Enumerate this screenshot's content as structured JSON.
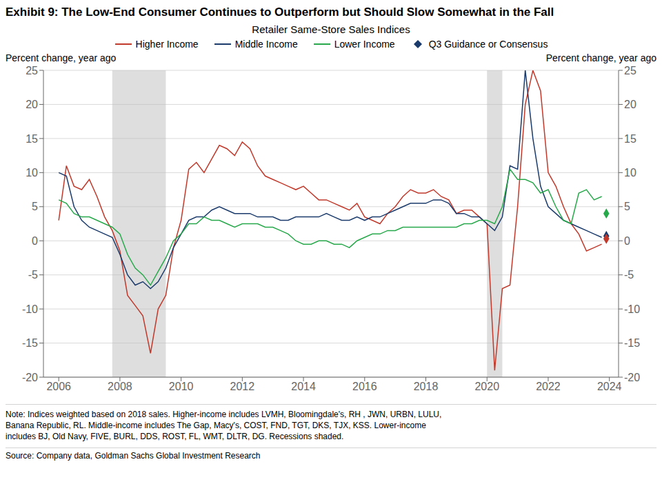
{
  "chart_data": {
    "type": "line",
    "title": "Exhibit 9: The Low-End Consumer Continues to Outperform but Should Slow Somewhat in the Fall",
    "ylabel": "Percent change, year ago",
    "y2label": "Percent change, year ago",
    "legend_title": "Retailer Same-Store Sales Indices",
    "legend": "top",
    "grid": true,
    "x": [
      2006.0,
      2006.25,
      2006.5,
      2006.75,
      2007.0,
      2007.25,
      2007.5,
      2007.75,
      2008.0,
      2008.25,
      2008.5,
      2008.75,
      2009.0,
      2009.25,
      2009.5,
      2009.75,
      2010.0,
      2010.25,
      2010.5,
      2010.75,
      2011.0,
      2011.25,
      2011.5,
      2011.75,
      2012.0,
      2012.25,
      2012.5,
      2012.75,
      2013.0,
      2013.25,
      2013.5,
      2013.75,
      2014.0,
      2014.25,
      2014.5,
      2014.75,
      2015.0,
      2015.25,
      2015.5,
      2015.75,
      2016.0,
      2016.25,
      2016.5,
      2016.75,
      2017.0,
      2017.25,
      2017.5,
      2017.75,
      2018.0,
      2018.25,
      2018.5,
      2018.75,
      2019.0,
      2019.25,
      2019.5,
      2019.75,
      2020.0,
      2020.25,
      2020.5,
      2020.75,
      2021.0,
      2021.25,
      2021.5,
      2021.75,
      2022.0,
      2022.25,
      2022.5,
      2022.75,
      2023.0,
      2023.25,
      2023.5,
      2023.75
    ],
    "xlim": [
      2005.5,
      2024.3
    ],
    "xticks": [
      2006,
      2008,
      2010,
      2012,
      2014,
      2016,
      2018,
      2020,
      2022,
      2024
    ],
    "ylim": [
      -20,
      25
    ],
    "yticks": [
      -20,
      -15,
      -10,
      -5,
      0,
      5,
      10,
      15,
      20,
      25
    ],
    "y2lim": [
      -20,
      25
    ],
    "y2ticks": [
      -20,
      -15,
      -10,
      -5,
      0,
      5,
      10,
      15,
      20,
      25
    ],
    "shaded_x_ranges": [
      [
        2007.75,
        2009.5
      ],
      [
        2020.0,
        2020.5
      ]
    ],
    "series": [
      {
        "name": "Higher Income",
        "color": "#c0392b",
        "values": [
          3.0,
          11.0,
          8.0,
          7.5,
          9.0,
          6.5,
          3.5,
          1.5,
          -1.5,
          -8.0,
          -9.5,
          -11.0,
          -16.5,
          -10.0,
          -8.0,
          -1.0,
          3.0,
          10.5,
          11.5,
          10.0,
          12.0,
          14.0,
          13.5,
          12.5,
          14.5,
          13.5,
          11.0,
          9.5,
          9.0,
          8.5,
          8.0,
          7.5,
          8.0,
          7.0,
          6.0,
          6.0,
          5.5,
          5.0,
          4.5,
          5.5,
          3.5,
          3.0,
          2.5,
          4.0,
          5.0,
          6.5,
          7.5,
          7.0,
          7.0,
          7.5,
          6.5,
          6.0,
          4.0,
          4.5,
          4.5,
          3.5,
          2.5,
          -19.0,
          -7.0,
          -6.5,
          5.0,
          20.0,
          25.0,
          22.0,
          10.0,
          8.0,
          5.0,
          2.5,
          1.0,
          -1.5,
          -1.0,
          -0.5
        ]
      },
      {
        "name": "Middle Income",
        "color": "#1a3a6b",
        "values": [
          10.0,
          9.5,
          5.0,
          3.0,
          2.0,
          1.5,
          1.0,
          0.5,
          -2.0,
          -5.0,
          -6.5,
          -6.0,
          -7.0,
          -6.0,
          -4.0,
          -1.0,
          1.0,
          3.0,
          3.5,
          3.5,
          4.5,
          5.0,
          4.5,
          4.0,
          4.0,
          4.0,
          3.5,
          3.5,
          3.5,
          3.0,
          3.0,
          3.5,
          3.5,
          3.5,
          3.5,
          4.0,
          3.5,
          3.0,
          3.0,
          3.5,
          3.0,
          3.5,
          3.5,
          4.0,
          4.5,
          5.0,
          5.5,
          5.5,
          5.5,
          6.0,
          6.0,
          5.5,
          4.0,
          4.0,
          3.5,
          3.5,
          2.5,
          1.5,
          3.5,
          11.0,
          10.5,
          25.0,
          15.0,
          8.0,
          5.0,
          4.0,
          3.0,
          2.5,
          2.0,
          1.5,
          1.0,
          0.5
        ]
      },
      {
        "name": "Lower Income",
        "color": "#27a84a",
        "values": [
          6.0,
          5.5,
          4.0,
          3.5,
          3.5,
          3.0,
          2.5,
          2.0,
          1.0,
          -2.0,
          -4.0,
          -5.0,
          -6.5,
          -4.5,
          -2.5,
          0.0,
          1.0,
          2.5,
          2.5,
          3.5,
          3.0,
          3.0,
          2.5,
          2.0,
          2.5,
          2.5,
          2.5,
          2.0,
          2.0,
          1.5,
          1.0,
          0.0,
          -0.5,
          -0.5,
          0.0,
          0.0,
          -0.5,
          -0.5,
          -1.0,
          0.0,
          0.5,
          1.0,
          1.0,
          1.5,
          1.5,
          2.0,
          2.0,
          2.0,
          2.0,
          2.0,
          2.0,
          2.0,
          2.0,
          2.5,
          2.5,
          3.0,
          3.0,
          2.5,
          5.0,
          10.5,
          9.0,
          9.0,
          8.5,
          7.0,
          7.5,
          5.0,
          3.0,
          2.5,
          7.0,
          7.5,
          6.0,
          6.5
        ]
      },
      {
        "name": "Q3 Guidance or Consensus",
        "type": "scatter",
        "marker": "diamond",
        "color": "#1a3a6b",
        "colors": [
          "#27a84a",
          "#1a3a6b",
          "#c0392b"
        ],
        "x": [
          2023.9,
          2023.9,
          2023.9
        ],
        "values": [
          4.0,
          0.7,
          0.3
        ]
      }
    ],
    "notes": [
      "Note: Indices weighted based on 2018 sales. Higher-income includes LVMH, Bloomingdale's, RH , JWN, URBN, LULU,",
      "Banana Republic, RL. Middle-income includes The Gap, Macy's, COST, FND, TGT, DKS, TJX, KSS. Lower-income",
      "includes BJ, Old Navy, FIVE, BURL, DDS, ROST, FL, WMT, DLTR, DG. Recessions shaded."
    ],
    "source": "Source: Company data, Goldman Sachs Global Investment Research"
  }
}
